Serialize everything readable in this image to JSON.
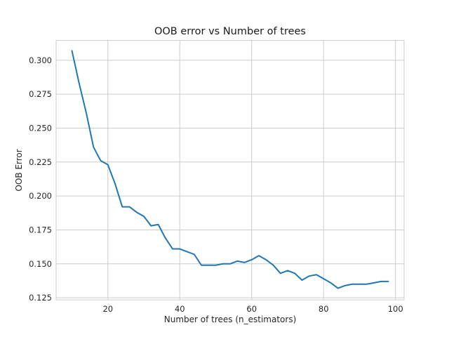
{
  "chart_data": {
    "type": "line",
    "title": "OOB error vs Number of trees",
    "xlabel": "Number of trees (n_estimators)",
    "ylabel": "OOB Error",
    "xlim": [
      5.6,
      102.4
    ],
    "ylim": [
      0.1234,
      0.3146
    ],
    "xticks": [
      20,
      40,
      60,
      80,
      100
    ],
    "yticks": [
      0.125,
      0.15,
      0.175,
      0.2,
      0.225,
      0.25,
      0.275,
      0.3
    ],
    "xtick_labels": [
      "20",
      "40",
      "60",
      "80",
      "100"
    ],
    "ytick_labels": [
      "0.125",
      "0.150",
      "0.175",
      "0.200",
      "0.225",
      "0.250",
      "0.275",
      "0.300"
    ],
    "grid": true,
    "line_color": "#1f77b4",
    "series": [
      {
        "x": [
          10,
          12,
          14,
          16,
          18,
          20,
          22,
          24,
          26,
          28,
          30,
          32,
          34,
          36,
          38,
          40,
          42,
          44,
          46,
          48,
          50,
          52,
          54,
          56,
          58,
          60,
          62,
          64,
          66,
          68,
          70,
          72,
          74,
          76,
          78,
          80,
          82,
          84,
          86,
          88,
          90,
          92,
          94,
          96,
          98
        ],
        "y": [
          0.307,
          0.283,
          0.261,
          0.236,
          0.226,
          0.223,
          0.209,
          0.192,
          0.192,
          0.188,
          0.185,
          0.178,
          0.179,
          0.169,
          0.161,
          0.161,
          0.159,
          0.157,
          0.149,
          0.149,
          0.149,
          0.15,
          0.15,
          0.152,
          0.151,
          0.153,
          0.156,
          0.153,
          0.149,
          0.143,
          0.145,
          0.143,
          0.138,
          0.141,
          0.142,
          0.139,
          0.136,
          0.132,
          0.134,
          0.135,
          0.135,
          0.135,
          0.136,
          0.137,
          0.137
        ]
      }
    ]
  }
}
